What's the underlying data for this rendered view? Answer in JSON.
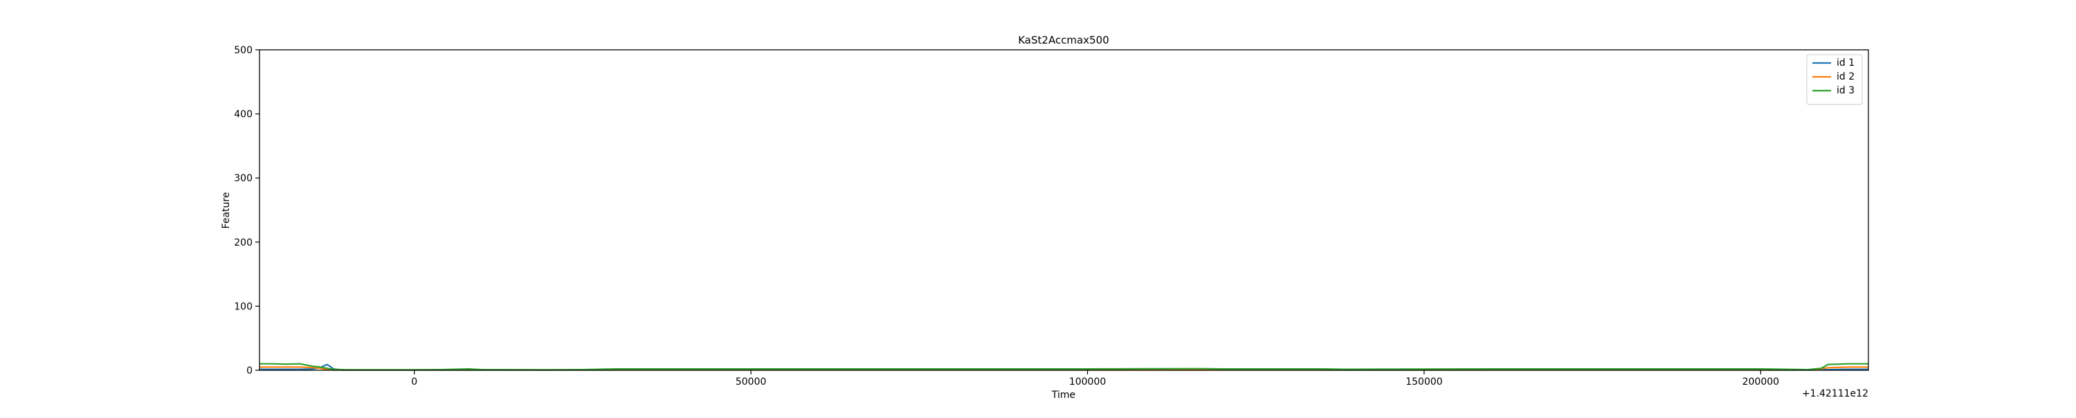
{
  "chart_data": {
    "type": "line",
    "title": "KaSt2Accmax500",
    "xlabel": "Time",
    "ylabel": "Feature",
    "x_offset_label": "+1.42111e12",
    "xlim": [
      -23000,
      216000
    ],
    "ylim": [
      0,
      500
    ],
    "x_ticks": [
      0,
      50000,
      100000,
      150000,
      200000
    ],
    "x_tick_labels": [
      "0",
      "50000",
      "100000",
      "150000",
      "200000"
    ],
    "y_ticks": [
      0,
      100,
      200,
      300,
      400,
      500
    ],
    "y_tick_labels": [
      "0",
      "100",
      "200",
      "300",
      "400",
      "500"
    ],
    "grid": false,
    "legend_position": "upper right",
    "series": [
      {
        "name": "id 1",
        "color": "#1f77b4",
        "x": [
          -23000,
          -20000,
          -17000,
          -15000,
          -14000,
          -13000,
          -12500,
          -12000,
          -11000,
          -10000,
          -5000,
          0,
          5000,
          10000,
          20000,
          40000,
          60000,
          80000,
          100000,
          120000,
          140000,
          160000,
          180000,
          200000,
          205000,
          208000,
          210000,
          213000,
          216000
        ],
        "y": [
          1.5,
          1.5,
          1.5,
          2,
          4,
          9,
          6,
          2,
          0.5,
          0.5,
          0.5,
          0.5,
          0.5,
          0.5,
          0.5,
          0.5,
          0.5,
          0.5,
          0.5,
          0.5,
          0.5,
          0.5,
          0.5,
          0.5,
          0.5,
          0.5,
          1,
          1.5,
          1.5
        ]
      },
      {
        "name": "id 2",
        "color": "#ff7f0e",
        "x": [
          -23000,
          -20000,
          -17000,
          -15000,
          -14000,
          -13000,
          -12000,
          -10000,
          -5000,
          0,
          5000,
          10000,
          20000,
          40000,
          60000,
          80000,
          100000,
          120000,
          140000,
          160000,
          180000,
          200000,
          205000,
          208000,
          210000,
          213000,
          216000
        ],
        "y": [
          5,
          5,
          5,
          4,
          3,
          1,
          0.5,
          0.5,
          0.5,
          0.5,
          0.5,
          0.5,
          0.5,
          0.5,
          0.5,
          0.5,
          0.5,
          0.5,
          0.5,
          0.5,
          0.5,
          0.5,
          0.5,
          1,
          4,
          5,
          5
        ]
      },
      {
        "name": "id 3",
        "color": "#2ca02c",
        "x": [
          -23000,
          -21000,
          -19000,
          -17000,
          -16000,
          -15000,
          -14000,
          -13000,
          -12000,
          -10000,
          -5000,
          0,
          4000,
          8000,
          10000,
          20000,
          25000,
          30000,
          40000,
          60000,
          80000,
          100000,
          117000,
          120000,
          135000,
          138000,
          160000,
          180000,
          200000,
          207000,
          209000,
          210000,
          213000,
          216000
        ],
        "y": [
          10,
          10,
          9.5,
          10,
          8,
          6,
          5,
          3,
          1.5,
          0.5,
          0.5,
          0.5,
          1,
          2,
          1,
          0.5,
          1,
          2,
          2,
          2,
          2,
          2,
          2.5,
          2,
          2,
          1.5,
          2,
          2,
          2,
          1,
          3,
          9,
          10,
          10
        ]
      }
    ]
  }
}
